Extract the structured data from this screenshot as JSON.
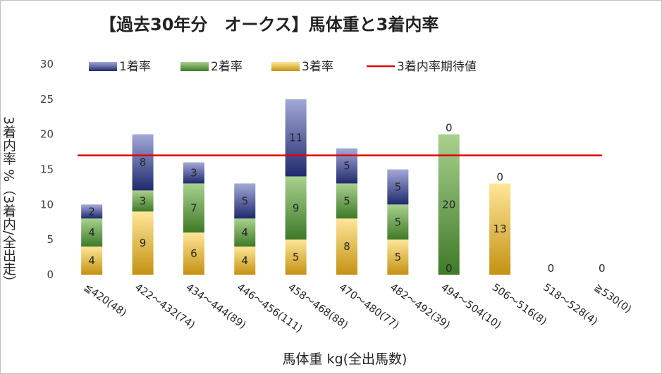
{
  "chart_data": {
    "type": "bar",
    "stacked": true,
    "title": "【過去30年分　オークス】馬体重と3着内率",
    "xlabel": "馬体重 kg(全出馬数)",
    "ylabel": "3着内率 %（3着内/全出走）",
    "ylim": [
      0,
      30
    ],
    "yticks": [
      "0",
      "5",
      "10",
      "15",
      "20",
      "25",
      "30"
    ],
    "categories": [
      "≦420(48)",
      "422～432(74)",
      "434～444(89)",
      "446～456(111)",
      "458～468(88)",
      "470～480(77)",
      "482～492(39)",
      "494～504(10)",
      "506～516(8)",
      "518～528(4)",
      "≧530(0)"
    ],
    "series": [
      {
        "name": "3着率",
        "values": [
          4,
          9,
          6,
          4,
          5,
          8,
          5,
          0,
          13,
          0,
          0
        ],
        "labels": [
          "4",
          "9",
          "6",
          "4",
          "5",
          "8",
          "5",
          "0",
          "13",
          "0",
          "0"
        ]
      },
      {
        "name": "2着率",
        "values": [
          4,
          3,
          7,
          4,
          9,
          5,
          5,
          20,
          0,
          0,
          0
        ],
        "labels": [
          "4",
          "3",
          "7",
          "4",
          "9",
          "5",
          "5",
          "20",
          "",
          "",
          ""
        ]
      },
      {
        "name": "1着率",
        "values": [
          2,
          8,
          3,
          5,
          11,
          5,
          5,
          0,
          0,
          0,
          0
        ],
        "labels": [
          "2",
          "8",
          "3",
          "5",
          "11",
          "5",
          "5",
          "0",
          "0",
          "",
          ""
        ]
      }
    ],
    "reference_line": {
      "name": "3着内率期待値",
      "value": 17,
      "color": "#e00000"
    },
    "colors": {
      "rate1": "#2e3a7f",
      "rate2": "#5a8f3a",
      "rate3": "#d9a51e"
    },
    "legend": {
      "position": "top",
      "order": [
        "1着率",
        "2着率",
        "3着率",
        "3着内率期待値"
      ]
    },
    "grid": false
  }
}
